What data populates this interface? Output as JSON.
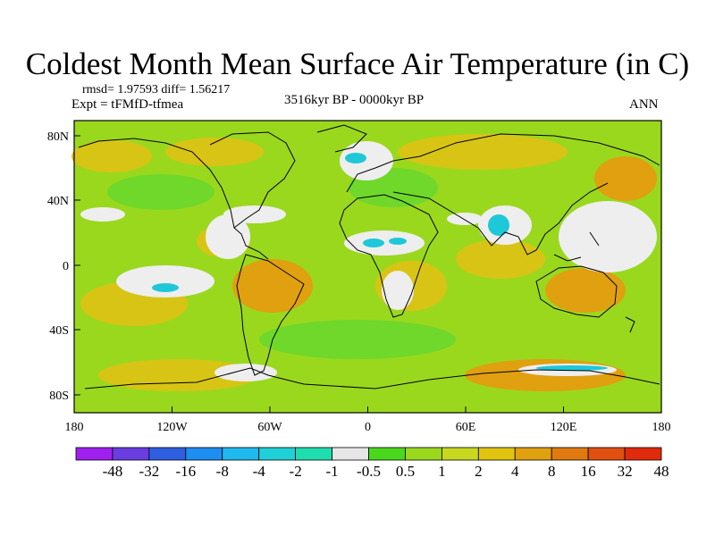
{
  "title": "Coldest Month Mean Surface Air Temperature (in C)",
  "stats": "rmsd= 1.97593 diff= 1.56217",
  "experiment": "Expt = tFMfD-tfmea",
  "period": "3516kyr BP - 0000kyr BP",
  "season": "ANN",
  "lat_ticks": [
    "80N",
    "40N",
    "0",
    "40S",
    "80S"
  ],
  "lon_ticks": [
    "180",
    "120W",
    "60W",
    "0",
    "60E",
    "120E",
    "180"
  ],
  "colorbar": {
    "labels": [
      "-48",
      "-32",
      "-16",
      "-8",
      "-4",
      "-2",
      "-1",
      "-0.5",
      "0.5",
      "1",
      "2",
      "4",
      "8",
      "16",
      "32",
      "48"
    ],
    "colors": [
      "#a020f0",
      "#6a3de0",
      "#2f5fe0",
      "#1e8ef0",
      "#1fb9f0",
      "#1fd0d8",
      "#20ddb0",
      "#e6e6e6",
      "#4ad81e",
      "#9ad81e",
      "#c8d820",
      "#e0c410",
      "#e0a010",
      "#e07a10",
      "#e05010",
      "#e02a0c"
    ]
  },
  "map_colors": {
    "base": "#9ad81e",
    "green": "#6fd82a",
    "gold": "#d8c414",
    "orange": "#e0a010",
    "white": "#eeeeee",
    "cyan": "#1fc8d8"
  }
}
